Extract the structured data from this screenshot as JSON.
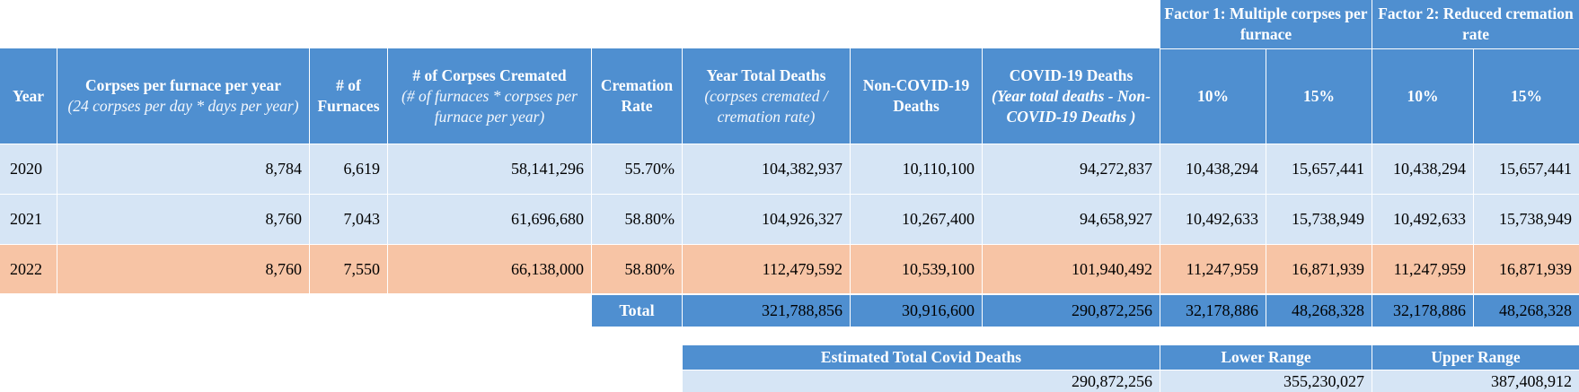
{
  "factor_headers": {
    "factor1": "Factor 1: Multiple corpses per furnace",
    "factor2": "Factor 2: Reduced cremation rate"
  },
  "columns": {
    "year": "Year",
    "corpses_per_furnace": "Corpses per furnace per year",
    "corpses_per_furnace_note": "(24 corpses per day * days per year)",
    "furnaces": "# of Furnaces",
    "corpses_cremated": "# of Corpses Cremated",
    "corpses_cremated_note": "(# of furnaces * corpses per furnace per year)",
    "cremation_rate": "Cremation Rate",
    "year_total_deaths": "Year Total Deaths",
    "year_total_deaths_note": "(corpses cremated / cremation rate)",
    "non_covid_deaths": "Non-COVID-19 Deaths",
    "covid_deaths": "COVID-19 Deaths",
    "covid_deaths_note": "(Year total deaths - Non-COVID-19 Deaths )",
    "f1_10": "10%",
    "f1_15": "15%",
    "f2_10": "10%",
    "f2_15": "15%"
  },
  "rows": [
    {
      "year": "2020",
      "corpses_per_furnace": "8,784",
      "furnaces": "6,619",
      "cremated": "58,141,296",
      "rate": "55.70%",
      "total_deaths": "104,382,937",
      "non_covid": "10,110,100",
      "covid": "94,272,837",
      "f1_10": "10,438,294",
      "f1_15": "15,657,441",
      "f2_10": "10,438,294",
      "f2_15": "15,657,441"
    },
    {
      "year": "2021",
      "corpses_per_furnace": "8,760",
      "furnaces": "7,043",
      "cremated": "61,696,680",
      "rate": "58.80%",
      "total_deaths": "104,926,327",
      "non_covid": "10,267,400",
      "covid": "94,658,927",
      "f1_10": "10,492,633",
      "f1_15": "15,738,949",
      "f2_10": "10,492,633",
      "f2_15": "15,738,949"
    },
    {
      "year": "2022",
      "corpses_per_furnace": "8,760",
      "furnaces": "7,550",
      "cremated": "66,138,000",
      "rate": "58.80%",
      "total_deaths": "112,479,592",
      "non_covid": "10,539,100",
      "covid": "101,940,492",
      "f1_10": "11,247,959",
      "f1_15": "16,871,939",
      "f2_10": "11,247,959",
      "f2_15": "16,871,939"
    }
  ],
  "total": {
    "label": "Total",
    "total_deaths": "321,788,856",
    "non_covid": "30,916,600",
    "covid": "290,872,256",
    "f1_10": "32,178,886",
    "f1_15": "48,268,328",
    "f2_10": "32,178,886",
    "f2_15": "48,268,328"
  },
  "estimate": {
    "label": "Estimated Total Covid Deaths",
    "lower_label": "Lower Range",
    "upper_label": "Upper Range",
    "value": "290,872,256",
    "lower": "355,230,027",
    "upper": "387,408,912"
  },
  "colors": {
    "header_blue": "#4f8fd0",
    "row_light_blue": "#d6e5f5",
    "row_highlight_orange": "#f7c4a5"
  }
}
